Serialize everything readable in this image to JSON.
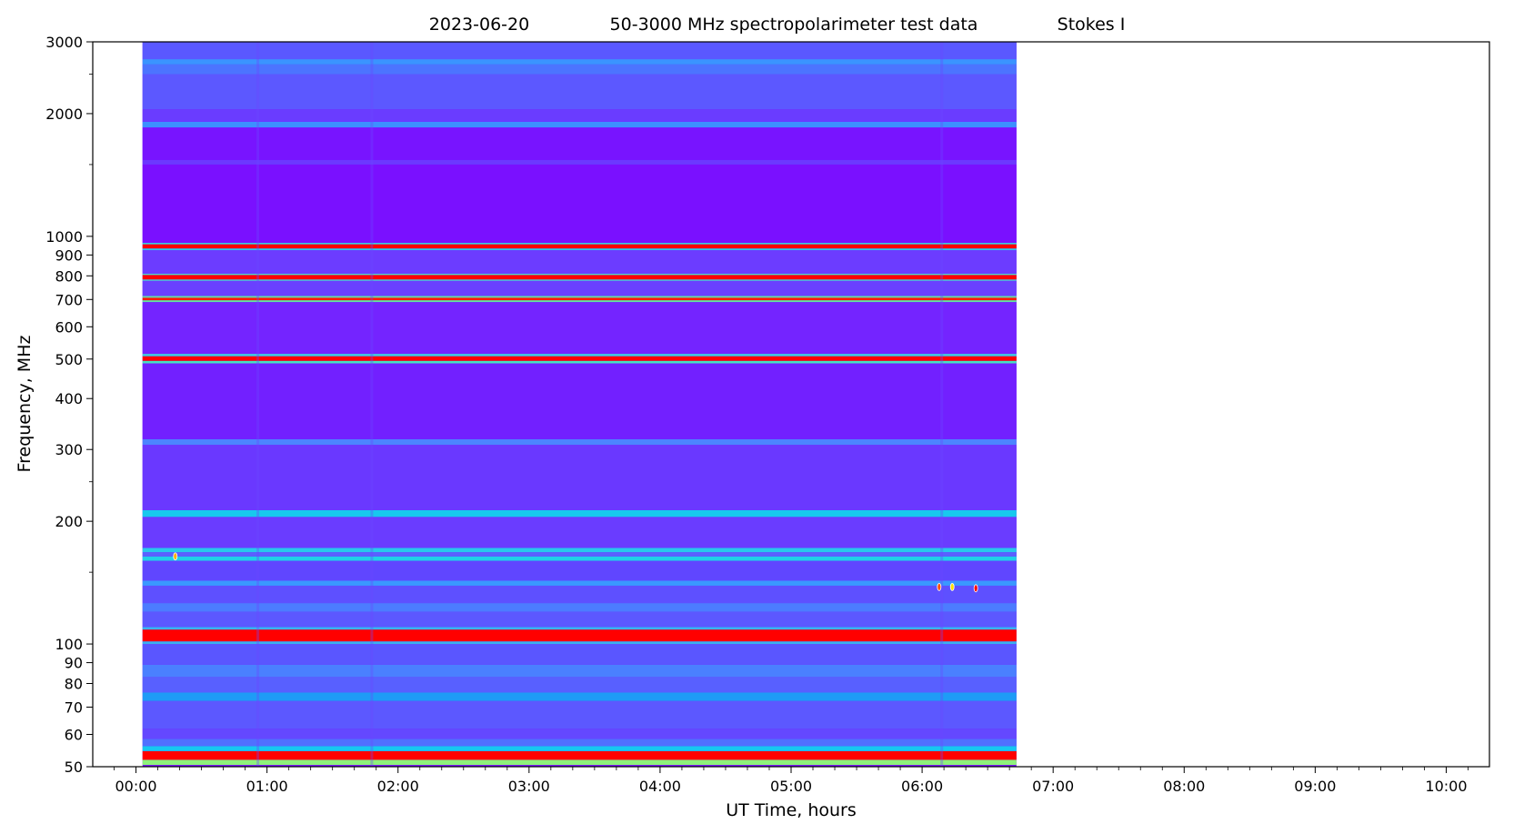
{
  "chart_data": {
    "type": "heatmap",
    "title": {
      "date": "2023-06-20",
      "description": "50-3000 MHz spectropolarimeter test data",
      "parameter": "Stokes I"
    },
    "xlabel": "UT Time, hours",
    "ylabel": "Frequency, MHz",
    "xlim_hours": [
      -0.33,
      10.33
    ],
    "ylim_mhz": [
      50,
      3000
    ],
    "yscale": "log",
    "x_ticks": [
      {
        "value": 0,
        "label": "00:00"
      },
      {
        "value": 1,
        "label": "01:00"
      },
      {
        "value": 2,
        "label": "02:00"
      },
      {
        "value": 3,
        "label": "03:00"
      },
      {
        "value": 4,
        "label": "04:00"
      },
      {
        "value": 5,
        "label": "05:00"
      },
      {
        "value": 6,
        "label": "06:00"
      },
      {
        "value": 7,
        "label": "07:00"
      },
      {
        "value": 8,
        "label": "08:00"
      },
      {
        "value": 9,
        "label": "09:00"
      },
      {
        "value": 10,
        "label": "10:00"
      }
    ],
    "y_ticks": [
      {
        "value": 50,
        "label": "50"
      },
      {
        "value": 60,
        "label": "60"
      },
      {
        "value": 70,
        "label": "70"
      },
      {
        "value": 80,
        "label": "80"
      },
      {
        "value": 90,
        "label": "90"
      },
      {
        "value": 100,
        "label": "100"
      },
      {
        "value": 200,
        "label": "200"
      },
      {
        "value": 300,
        "label": "300"
      },
      {
        "value": 400,
        "label": "400"
      },
      {
        "value": 500,
        "label": "500"
      },
      {
        "value": 600,
        "label": "600"
      },
      {
        "value": 700,
        "label": "700"
      },
      {
        "value": 800,
        "label": "800"
      },
      {
        "value": 900,
        "label": "900"
      },
      {
        "value": 1000,
        "label": "1000"
      },
      {
        "value": 2000,
        "label": "2000"
      },
      {
        "value": 3000,
        "label": "3000"
      }
    ],
    "y_minor_ticks": [
      150,
      250,
      1500,
      2500
    ],
    "data_time_range_hours": [
      0.05,
      6.72
    ],
    "colormap": "rainbow",
    "background_color": "#7a10ff",
    "bands": [
      {
        "f_low": 50.5,
        "f_high": 52.0,
        "color": "#8ef27a"
      },
      {
        "f_low": 52.0,
        "f_high": 54.6,
        "color": "#ff0000"
      },
      {
        "f_low": 54.6,
        "f_high": 56.2,
        "color": "#16c8f0"
      },
      {
        "f_low": 56.2,
        "f_high": 58.5,
        "color": "#5070ff"
      },
      {
        "f_low": 58.5,
        "f_high": 62.0,
        "color": "#6448ff"
      },
      {
        "f_low": 62.0,
        "f_high": 72.5,
        "color": "#5c58ff"
      },
      {
        "f_low": 72.5,
        "f_high": 76.0,
        "color": "#1e9cf6"
      },
      {
        "f_low": 76.0,
        "f_high": 83.0,
        "color": "#5860ff"
      },
      {
        "f_low": 83.0,
        "f_high": 89.0,
        "color": "#4a80ff"
      },
      {
        "f_low": 89.0,
        "f_high": 100.0,
        "color": "#5a56ff"
      },
      {
        "f_low": 100.0,
        "f_high": 101.5,
        "color": "#3ab0f0"
      },
      {
        "f_low": 101.5,
        "f_high": 108.5,
        "color": "#ff0000"
      },
      {
        "f_low": 108.5,
        "f_high": 110.0,
        "color": "#38b4f0"
      },
      {
        "f_low": 110.0,
        "f_high": 120.0,
        "color": "#5c58ff"
      },
      {
        "f_low": 120.0,
        "f_high": 126.0,
        "color": "#4c7cff"
      },
      {
        "f_low": 126.0,
        "f_high": 139.0,
        "color": "#5e50ff"
      },
      {
        "f_low": 139.0,
        "f_high": 143.0,
        "color": "#3a98ff"
      },
      {
        "f_low": 143.0,
        "f_high": 160.0,
        "color": "#6046ff"
      },
      {
        "f_low": 160.0,
        "f_high": 164.0,
        "color": "#20d0e8"
      },
      {
        "f_low": 164.0,
        "f_high": 168.0,
        "color": "#5a60ff"
      },
      {
        "f_low": 168.0,
        "f_high": 172.0,
        "color": "#28c8ec"
      },
      {
        "f_low": 172.0,
        "f_high": 205.0,
        "color": "#6a3cff"
      },
      {
        "f_low": 205.0,
        "f_high": 213.0,
        "color": "#18c8ee"
      },
      {
        "f_low": 213.0,
        "f_high": 308.0,
        "color": "#6a38ff"
      },
      {
        "f_low": 308.0,
        "f_high": 318.0,
        "color": "#4c84ff"
      },
      {
        "f_low": 318.0,
        "f_high": 488.0,
        "color": "#7220ff"
      },
      {
        "f_low": 488.0,
        "f_high": 495.0,
        "color": "#46e0c0"
      },
      {
        "f_low": 495.0,
        "f_high": 508.0,
        "color": "#ff0000"
      },
      {
        "f_low": 508.0,
        "f_high": 515.0,
        "color": "#40c8e0"
      },
      {
        "f_low": 515.0,
        "f_high": 690.0,
        "color": "#7424ff"
      },
      {
        "f_low": 690.0,
        "f_high": 697.0,
        "color": "#60e8a0"
      },
      {
        "f_low": 697.0,
        "f_high": 707.0,
        "color": "#ff1a00"
      },
      {
        "f_low": 707.0,
        "f_high": 714.0,
        "color": "#6ae0a0"
      },
      {
        "f_low": 714.0,
        "f_high": 778.0,
        "color": "#6a40ff"
      },
      {
        "f_low": 778.0,
        "f_high": 784.0,
        "color": "#48d8d0"
      },
      {
        "f_low": 784.0,
        "f_high": 804.0,
        "color": "#ff0000"
      },
      {
        "f_low": 804.0,
        "f_high": 810.0,
        "color": "#50d8c8"
      },
      {
        "f_low": 810.0,
        "f_high": 925.0,
        "color": "#6c3cff"
      },
      {
        "f_low": 925.0,
        "f_high": 934.0,
        "color": "#30c8e8"
      },
      {
        "f_low": 934.0,
        "f_high": 956.0,
        "color": "#ff0000"
      },
      {
        "f_low": 956.0,
        "f_high": 964.0,
        "color": "#38d0e0"
      },
      {
        "f_low": 964.0,
        "f_high": 1500.0,
        "color": "#7a10ff"
      },
      {
        "f_low": 1500.0,
        "f_high": 1540.0,
        "color": "#6c38ff"
      },
      {
        "f_low": 1540.0,
        "f_high": 1850.0,
        "color": "#7814ff"
      },
      {
        "f_low": 1850.0,
        "f_high": 1910.0,
        "color": "#3c90ff"
      },
      {
        "f_low": 1910.0,
        "f_high": 2050.0,
        "color": "#6a3cff"
      },
      {
        "f_low": 2050.0,
        "f_high": 2500.0,
        "color": "#5c58ff"
      },
      {
        "f_low": 2500.0,
        "f_high": 2640.0,
        "color": "#4c74ff"
      },
      {
        "f_low": 2640.0,
        "f_high": 2720.0,
        "color": "#3a94ff"
      },
      {
        "f_low": 2720.0,
        "f_high": 3000.0,
        "color": "#5a58ff"
      }
    ],
    "time_stripes_hours": [
      0.93,
      1.8,
      6.15
    ],
    "hot_spots": [
      {
        "t": 0.3,
        "f": 164.0,
        "color": "#ffb000"
      },
      {
        "t": 6.13,
        "f": 138.0,
        "color": "#ff5000"
      },
      {
        "t": 6.23,
        "f": 138.0,
        "color": "#ffe000"
      },
      {
        "t": 6.41,
        "f": 137.0,
        "color": "#ff0000"
      }
    ]
  }
}
